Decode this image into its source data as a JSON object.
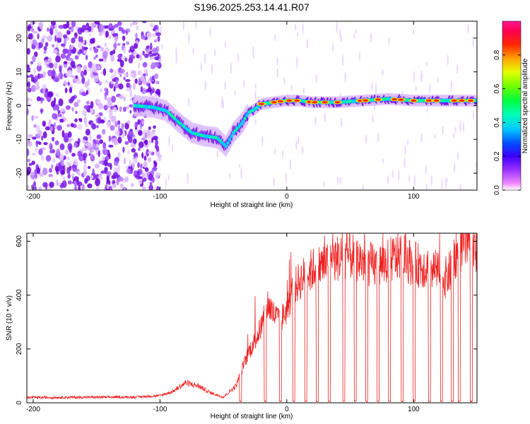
{
  "title": "S196.2025.253.14.41.R07",
  "colors": {
    "snr_line": "#ee2222",
    "rainbow": [
      "#ffffff",
      "#8a2be2",
      "#5000ff",
      "#0000ff",
      "#00c8ff",
      "#00ff88",
      "#00ff00",
      "#aaff00",
      "#ffff00",
      "#ff8000",
      "#ff0000",
      "#ff1493"
    ]
  },
  "chart_data": [
    {
      "type": "heatmap",
      "panel": "spectrogram",
      "title": "S196.2025.253.14.41.R07",
      "xlabel": "Height of straight line (km)",
      "ylabel": "Frequency (Hz)",
      "xlim": [
        -205,
        150
      ],
      "ylim": [
        -25,
        25
      ],
      "xticks": [
        -200,
        -100,
        0,
        100
      ],
      "xtick_labels": [
        "-200",
        "-100",
        "0",
        "100"
      ],
      "yticks": [
        -20,
        -10,
        0,
        10,
        20
      ],
      "ytick_labels": [
        "-20",
        "-10",
        "0",
        "10",
        "20"
      ],
      "ridge": {
        "x": [
          -120,
          -105,
          -95,
          -85,
          -75,
          -65,
          -55,
          -48,
          -42,
          -35,
          -30,
          -25,
          -20,
          -10,
          0,
          10,
          20,
          40,
          60,
          80,
          100,
          120,
          150
        ],
        "y": [
          0,
          -0.5,
          -1.5,
          -5,
          -8,
          -9,
          -9.5,
          -12,
          -8,
          -5,
          -2,
          -1,
          0.5,
          1,
          1.5,
          1.5,
          1,
          1,
          1.5,
          2,
          1.5,
          1.5,
          1.5
        ]
      },
      "noise_region_x": [
        -205,
        -100
      ],
      "colorbar": {
        "label": "Normalized spectral amplitude",
        "range": [
          0,
          1
        ],
        "ticks": [
          0,
          0.2,
          0.4,
          0.6,
          0.8
        ],
        "tick_labels": [
          "0.0",
          "0.2",
          "0.4",
          "0.6",
          "0.8"
        ]
      }
    },
    {
      "type": "line",
      "panel": "snr",
      "xlabel": "Height of straight line (km)",
      "ylabel": "SNR (10 * v/v)",
      "xlim": [
        -205,
        150
      ],
      "ylim": [
        0,
        630
      ],
      "xticks": [
        -200,
        -100,
        0,
        100
      ],
      "xtick_labels": [
        "-200",
        "-100",
        "0",
        "100"
      ],
      "yticks": [
        0,
        200,
        400,
        600
      ],
      "ytick_labels": [
        "0",
        "200",
        "400",
        "600"
      ],
      "series": [
        {
          "name": "SNR",
          "envelope_x": [
            -205,
            -120,
            -100,
            -90,
            -80,
            -70,
            -60,
            -50,
            -40,
            -35,
            -30,
            -25,
            -20,
            -15,
            -10,
            -5,
            0,
            5,
            10,
            20,
            30,
            40,
            50,
            60,
            70,
            80,
            90,
            100,
            110,
            120,
            125,
            130,
            135,
            140,
            145,
            150
          ],
          "envelope_y": [
            18,
            20,
            25,
            40,
            70,
            60,
            35,
            20,
            60,
            120,
            180,
            220,
            270,
            350,
            310,
            290,
            330,
            400,
            430,
            470,
            490,
            510,
            520,
            500,
            480,
            500,
            520,
            490,
            480,
            460,
            440,
            470,
            540,
            560,
            540,
            520
          ],
          "dropouts_x": [
            -36.5,
            -17,
            -5,
            5.5,
            15,
            24,
            33.5,
            45,
            54,
            63,
            72,
            81,
            91,
            100.5,
            112.5,
            122,
            130.5,
            136,
            145.5
          ]
        }
      ]
    }
  ]
}
